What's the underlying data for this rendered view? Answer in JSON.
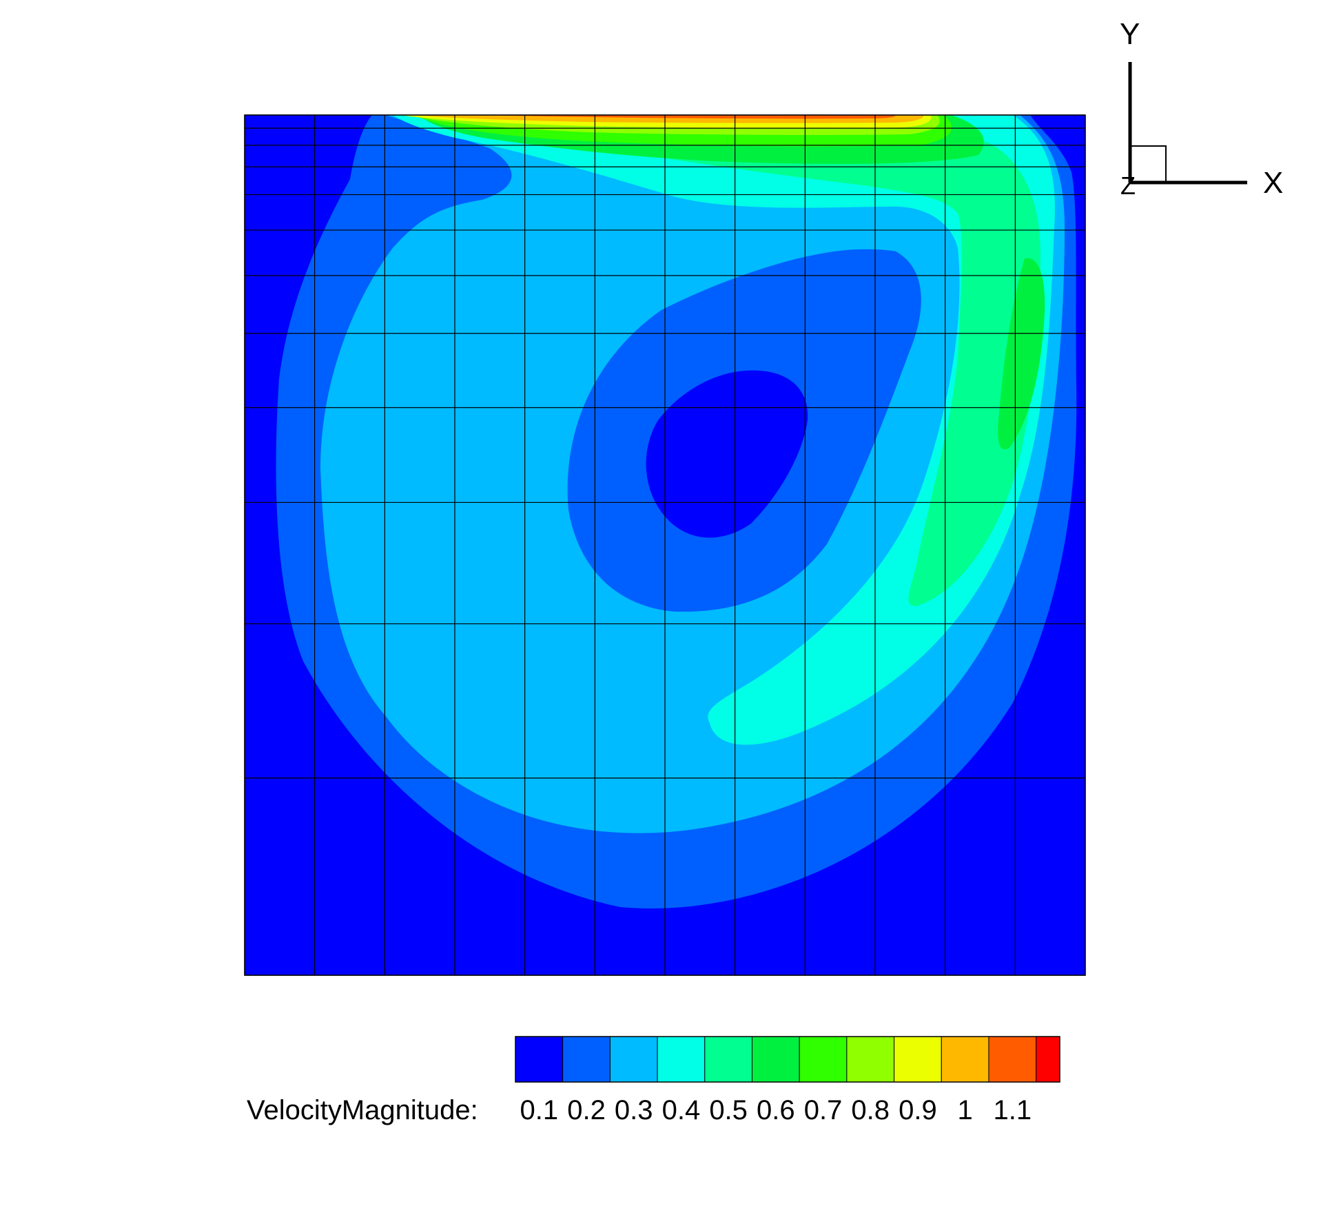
{
  "chart_data": {
    "type": "heatmap",
    "title": "",
    "variable_label": "VelocityMagnitude:",
    "colorbar": {
      "levels": [
        0.05,
        0.15,
        0.25,
        0.35,
        0.45,
        0.55,
        0.65,
        0.75,
        0.85,
        0.95,
        1.05,
        1.15,
        1.2
      ],
      "colors": [
        "#0000ff",
        "#0060ff",
        "#00bbff",
        "#00ffe6",
        "#00ff90",
        "#00f040",
        "#30ff00",
        "#90ff00",
        "#ebff00",
        "#ffb800",
        "#ff5c00",
        "#ff0000"
      ],
      "tick_labels": [
        "0.1",
        "0.2",
        "0.3",
        "0.4",
        "0.5",
        "0.6",
        "0.7",
        "0.8",
        "0.9",
        "1",
        "1.1"
      ],
      "tick_values": [
        0.1,
        0.2,
        0.3,
        0.4,
        0.5,
        0.6,
        0.7,
        0.8,
        0.9,
        1.0,
        1.1
      ]
    },
    "domain": {
      "xlim": [
        0,
        1
      ],
      "ylim": [
        0,
        1
      ]
    },
    "mesh": {
      "x_nodes": [
        0,
        0.0833,
        0.1667,
        0.25,
        0.3333,
        0.4167,
        0.5,
        0.5833,
        0.6667,
        0.75,
        0.8333,
        0.9167,
        1
      ],
      "y_nodes": [
        0,
        0.1868,
        0.3329,
        0.4479,
        0.5377,
        0.6079,
        0.6627,
        0.7058,
        0.7394,
        0.7657,
        0.7862,
        0.8023,
        0.8148
      ]
    },
    "isolines": [
      {
        "level": 0.1,
        "points": [
          [
            0.145,
            1.0
          ],
          [
            0.13,
            0.96
          ],
          [
            0.12,
            0.9
          ],
          [
            0.08,
            0.78
          ],
          [
            0.045,
            0.6
          ],
          [
            0.04,
            0.4
          ],
          [
            0.09,
            0.28
          ],
          [
            0.2,
            0.16
          ],
          [
            0.35,
            0.085
          ],
          [
            0.5,
            0.075
          ],
          [
            0.65,
            0.1
          ],
          [
            0.8,
            0.2
          ],
          [
            0.88,
            0.32
          ],
          [
            0.93,
            0.5
          ],
          [
            0.975,
            0.7
          ],
          [
            0.97,
            0.87
          ],
          [
            0.93,
            0.97
          ],
          [
            0.92,
            1.0
          ]
        ]
      },
      {
        "level": 0.2,
        "points": [
          [
            0.17,
            1.0
          ],
          [
            0.24,
            0.95
          ],
          [
            0.31,
            0.93
          ],
          [
            0.24,
            0.91
          ],
          [
            0.17,
            0.86
          ],
          [
            0.12,
            0.76
          ],
          [
            0.11,
            0.6
          ],
          [
            0.15,
            0.42
          ],
          [
            0.25,
            0.3
          ],
          [
            0.35,
            0.225
          ],
          [
            0.5,
            0.2
          ],
          [
            0.65,
            0.23
          ],
          [
            0.8,
            0.33
          ],
          [
            0.89,
            0.5
          ],
          [
            0.93,
            0.7
          ],
          [
            0.95,
            0.88
          ],
          [
            0.9,
            0.95
          ],
          [
            0.84,
            0.995
          ]
        ]
      },
      {
        "level": 0.3,
        "points": [
          [
            0.18,
            1.0
          ],
          [
            0.3,
            0.96
          ],
          [
            0.46,
            0.92
          ],
          [
            0.6,
            0.905
          ],
          [
            0.72,
            0.905
          ],
          [
            0.82,
            0.88
          ],
          [
            0.84,
            0.7
          ],
          [
            0.86,
            0.5
          ],
          [
            0.8,
            0.38
          ],
          [
            0.68,
            0.3
          ],
          [
            0.54,
            0.27
          ],
          [
            0.55,
            0.3
          ],
          [
            0.64,
            0.36
          ],
          [
            0.72,
            0.42
          ],
          [
            0.79,
            0.52
          ],
          [
            0.8,
            0.68
          ],
          [
            0.75,
            0.77
          ],
          [
            0.62,
            0.82
          ],
          [
            0.5,
            0.8
          ],
          [
            0.4,
            0.75
          ],
          [
            0.36,
            0.62
          ],
          [
            0.42,
            0.52
          ],
          [
            0.55,
            0.45
          ],
          [
            0.6,
            0.44
          ]
        ]
      },
      {
        "level": 0.5,
        "points": [
          [
            0.8,
            0.75
          ],
          [
            0.84,
            0.62
          ],
          [
            0.88,
            0.5
          ],
          [
            0.9,
            0.6
          ],
          [
            0.9,
            0.72
          ],
          [
            0.85,
            0.77
          ]
        ]
      },
      {
        "level": 0.6,
        "points": [
          [
            0.9,
            0.62
          ],
          [
            0.925,
            0.66
          ],
          [
            0.935,
            0.72
          ],
          [
            0.925,
            0.74
          ],
          [
            0.905,
            0.7
          ]
        ]
      }
    ],
    "top_boundary_band_levels": [
      0.4,
      0.5,
      0.6,
      0.7,
      0.8,
      0.9,
      1.0
    ],
    "axes_triad": {
      "x_label": "X",
      "y_label": "Y",
      "z_label": "Z"
    }
  }
}
